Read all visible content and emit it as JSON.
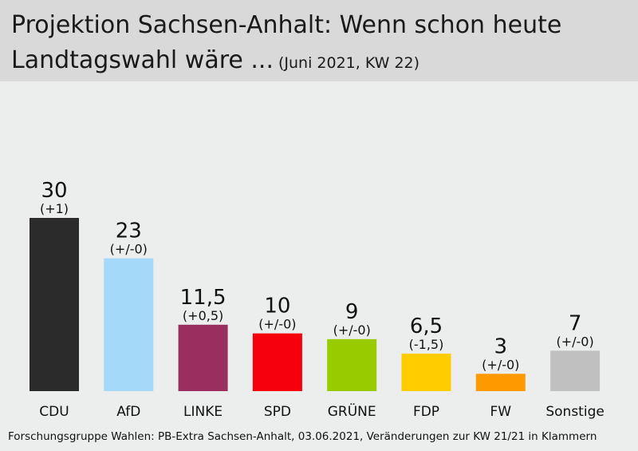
{
  "header": {
    "title_line1": "Projektion Sachsen-Anhalt: Wenn schon heute",
    "title_line2": "Landtagswahl wäre ...",
    "subtitle": "(Juni 2021, KW 22)"
  },
  "source": "Forschungsgruppe Wahlen: PB-Extra Sachsen-Anhalt, 03.06.2021, Veränderungen zur KW 21/21 in Klammern",
  "chart_data": {
    "type": "bar",
    "title": "Projektion Sachsen-Anhalt: Wenn schon heute Landtagswahl wäre ...",
    "subtitle": "(Juni 2021, KW 22)",
    "ylim": [
      0,
      30
    ],
    "grid": false,
    "categories": [
      "CDU",
      "AfD",
      "LINKE",
      "SPD",
      "GRÜNE",
      "FDP",
      "FW",
      "Sonstige"
    ],
    "values": [
      30,
      23,
      11.5,
      10,
      9,
      6.5,
      3,
      7
    ],
    "value_labels": [
      "30",
      "23",
      "11,5",
      "10",
      "9",
      "6,5",
      "3",
      "7"
    ],
    "changes": [
      "(+1)",
      "(+/-0)",
      "(+0,5)",
      "(+/-0)",
      "(+/-0)",
      "(-1,5)",
      "(+/-0)",
      "(+/-0)"
    ],
    "colors": [
      "#2b2b2b",
      "#a5d9fa",
      "#9a2f5f",
      "#f5000c",
      "#99cc00",
      "#ffcc00",
      "#ff9900",
      "#c0c0c0"
    ]
  }
}
